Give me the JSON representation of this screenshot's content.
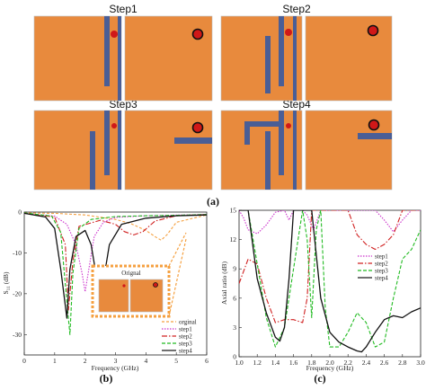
{
  "figure": {
    "colors": {
      "substrate": "#E88A3D",
      "strip": "#4A5E96",
      "dot_fill": "#D01818",
      "dot_ring": "#111111",
      "outline": "#B9B9B9"
    },
    "steps": [
      "Step1",
      "Step2",
      "Step3",
      "Step4"
    ],
    "panel_labels": {
      "a": "(a)",
      "b": "(b)",
      "c": "(c)"
    },
    "inset_title": "Orignal"
  },
  "chart_data": [
    {
      "type": "line",
      "id": "b",
      "xlabel": "Frequency (GHz)",
      "ylabel": "S11 (dB)",
      "xlim": [
        0,
        6
      ],
      "ylim": [
        -35,
        0
      ],
      "xticks": [
        "0",
        "1",
        "2",
        "3",
        "4",
        "5",
        "6"
      ],
      "yticks": [
        "0",
        "-10",
        "-20",
        "-30"
      ],
      "legend": "bottom-right",
      "series": [
        {
          "name": "orginal",
          "color": "#F5A040",
          "dash": "3,2",
          "x": [
            0.0,
            1.0,
            2.0,
            3.0,
            3.5,
            4.0,
            4.3,
            4.5,
            4.7,
            5.0,
            6.0
          ],
          "y": [
            -0.2,
            -0.3,
            -0.7,
            -1.8,
            -2.8,
            -4.5,
            -6.0,
            -6.9,
            -5.5,
            -2.5,
            -0.7
          ]
        },
        {
          "name": "step1",
          "color": "#CC33CC",
          "dash": "1.5,1.5",
          "x": [
            0.0,
            1.0,
            1.4,
            1.7,
            1.9,
            2.0,
            2.1,
            2.3,
            2.6,
            3.0,
            4.0,
            6.0
          ],
          "y": [
            -0.3,
            -1.0,
            -3.0,
            -8.0,
            -15.0,
            -19.5,
            -15.0,
            -6.0,
            -2.5,
            -1.3,
            -0.9,
            -0.6
          ]
        },
        {
          "name": "step2",
          "color": "#D02020",
          "dash": "6,2,1.5,2",
          "x": [
            0.0,
            1.0,
            1.35,
            1.45,
            1.6,
            1.8,
            2.5,
            3.0,
            3.3,
            3.6,
            3.9,
            4.3,
            5.0,
            6.0
          ],
          "y": [
            -0.3,
            -1.2,
            -8.0,
            -24.0,
            -12.0,
            -3.5,
            -2.0,
            -3.0,
            -4.8,
            -5.6,
            -4.8,
            -2.2,
            -0.9,
            -0.6
          ]
        },
        {
          "name": "step3",
          "color": "#22BB22",
          "dash": "4,2",
          "x": [
            0.0,
            0.9,
            1.2,
            1.4,
            1.5,
            1.6,
            1.8,
            2.2,
            3.0,
            4.0,
            5.0,
            6.0
          ],
          "y": [
            -0.2,
            -1.0,
            -5.0,
            -22.0,
            -30.0,
            -15.0,
            -4.0,
            -1.8,
            -1.1,
            -0.9,
            -0.8,
            -0.6
          ]
        },
        {
          "name": "step4",
          "color": "#111111",
          "dash": "",
          "x": [
            0.0,
            0.7,
            1.0,
            1.2,
            1.4,
            1.5,
            1.7,
            2.0,
            2.2,
            2.4,
            2.5,
            2.6,
            2.8,
            3.2,
            4.0,
            5.0,
            6.0
          ],
          "y": [
            -0.3,
            -1.2,
            -4.0,
            -14.0,
            -26.0,
            -14.0,
            -6.0,
            -4.5,
            -8.0,
            -17.0,
            -22.5,
            -17.0,
            -8.0,
            -3.0,
            -1.5,
            -0.9,
            -0.7
          ]
        }
      ]
    },
    {
      "type": "line",
      "id": "c",
      "xlabel": "Frequency (GHz)",
      "ylabel": "Axial ratio (dB)",
      "xlim": [
        1.0,
        3.0
      ],
      "ylim": [
        0,
        15
      ],
      "xticks": [
        "1.0",
        "1.2",
        "1.4",
        "1.6",
        "1.8",
        "2.0",
        "2.2",
        "2.4",
        "2.6",
        "2.8",
        "3.0"
      ],
      "yticks": [
        "0",
        "3",
        "6",
        "9",
        "12",
        "15"
      ],
      "legend": "center-left",
      "series": [
        {
          "name": "step1",
          "color": "#CC33CC",
          "dash": "1.5,1.5",
          "x": [
            1.0,
            1.05,
            1.1,
            1.2,
            1.3,
            1.4,
            1.5,
            1.55,
            1.6,
            1.7,
            1.75,
            1.82,
            1.9,
            2.0,
            2.1,
            2.2,
            2.3,
            2.4,
            2.5,
            2.6,
            2.7,
            2.8,
            2.9,
            3.0
          ],
          "y": [
            15,
            14.2,
            13.0,
            12.6,
            13.5,
            14.8,
            15.0,
            14.0,
            15.0,
            15.0,
            14.5,
            13.0,
            15.0,
            15.0,
            15.0,
            15.0,
            15.0,
            15.0,
            15.0,
            14.0,
            12.8,
            14.0,
            15.0,
            15.0
          ]
        },
        {
          "name": "step2",
          "color": "#D02020",
          "dash": "6,2,1.5,2",
          "x": [
            1.0,
            1.1,
            1.2,
            1.3,
            1.4,
            1.5,
            1.6,
            1.7,
            1.75,
            1.8,
            1.85,
            1.9,
            2.0,
            2.1,
            2.2,
            2.3,
            2.4,
            2.5,
            2.6,
            2.7,
            2.8,
            2.9,
            3.0
          ],
          "y": [
            7.5,
            10.0,
            9.5,
            6.0,
            3.5,
            3.8,
            3.8,
            3.5,
            6.0,
            15.0,
            15.0,
            15.0,
            15.0,
            15.0,
            15.0,
            12.5,
            11.5,
            11.0,
            11.5,
            12.5,
            15.0,
            15.0,
            15.0
          ]
        },
        {
          "name": "step3",
          "color": "#22BB22",
          "dash": "4,2",
          "x": [
            1.0,
            1.1,
            1.2,
            1.3,
            1.4,
            1.5,
            1.6,
            1.7,
            1.75,
            1.8,
            1.85,
            1.9,
            1.95,
            2.0,
            2.1,
            2.2,
            2.3,
            2.4,
            2.5,
            2.6,
            2.7,
            2.8,
            2.9,
            3.0
          ],
          "y": [
            15.0,
            15.0,
            9.5,
            4.0,
            1.0,
            3.0,
            9.0,
            15.0,
            12.0,
            4.0,
            13.0,
            15.0,
            5.0,
            1.0,
            1.0,
            2.5,
            4.5,
            3.5,
            1.0,
            1.5,
            6.0,
            10.0,
            11.0,
            13.0
          ]
        },
        {
          "name": "step4",
          "color": "#111111",
          "dash": "",
          "x": [
            1.0,
            1.1,
            1.2,
            1.3,
            1.4,
            1.45,
            1.5,
            1.55,
            1.6,
            1.65,
            1.7,
            1.75,
            1.8,
            1.9,
            2.0,
            2.1,
            2.2,
            2.3,
            2.35,
            2.4,
            2.5,
            2.6,
            2.7,
            2.8,
            2.9,
            3.0
          ],
          "y": [
            15.0,
            15.0,
            8.0,
            4.5,
            2.0,
            1.6,
            3.0,
            8.0,
            15.0,
            15.0,
            15.0,
            15.0,
            15.0,
            6.0,
            2.5,
            1.5,
            1.0,
            0.6,
            0.5,
            1.0,
            2.5,
            3.8,
            4.2,
            4.0,
            4.6,
            5.0
          ]
        }
      ]
    }
  ]
}
